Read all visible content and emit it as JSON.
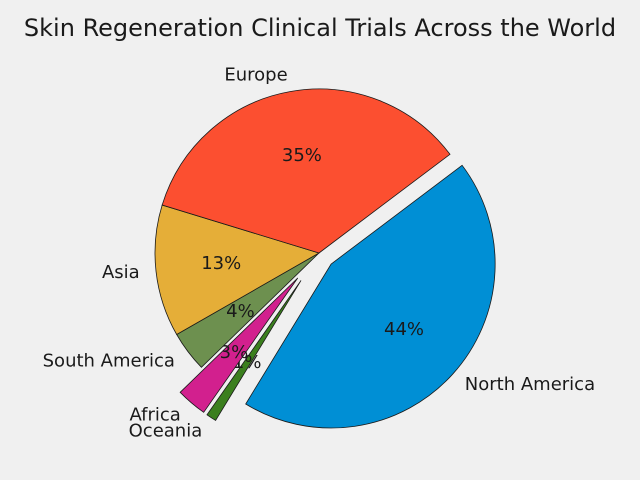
{
  "chart_data": {
    "type": "pie",
    "title": "Skin Regeneration Clinical Trials Across the World",
    "slices": [
      {
        "label": "North America",
        "value": 44,
        "pct_label": "44%",
        "color": "#008fd5",
        "explode": 0.1
      },
      {
        "label": "Oceania",
        "value": 1,
        "pct_label": "1%",
        "color": "#3b7f1e",
        "explode": 0.2
      },
      {
        "label": "Africa",
        "value": 3,
        "pct_label": "3%",
        "color": "#d2208e",
        "explode": 0.2
      },
      {
        "label": "South America",
        "value": 4,
        "pct_label": "4%",
        "color": "#6d904f",
        "explode": 0
      },
      {
        "label": "Asia",
        "value": 13,
        "pct_label": "13%",
        "color": "#e5ae38",
        "explode": 0
      },
      {
        "label": "Europe",
        "value": 35,
        "pct_label": "35%",
        "color": "#fc4f30",
        "explode": 0
      }
    ],
    "start_angle_deg": 37,
    "direction": "clockwise"
  }
}
